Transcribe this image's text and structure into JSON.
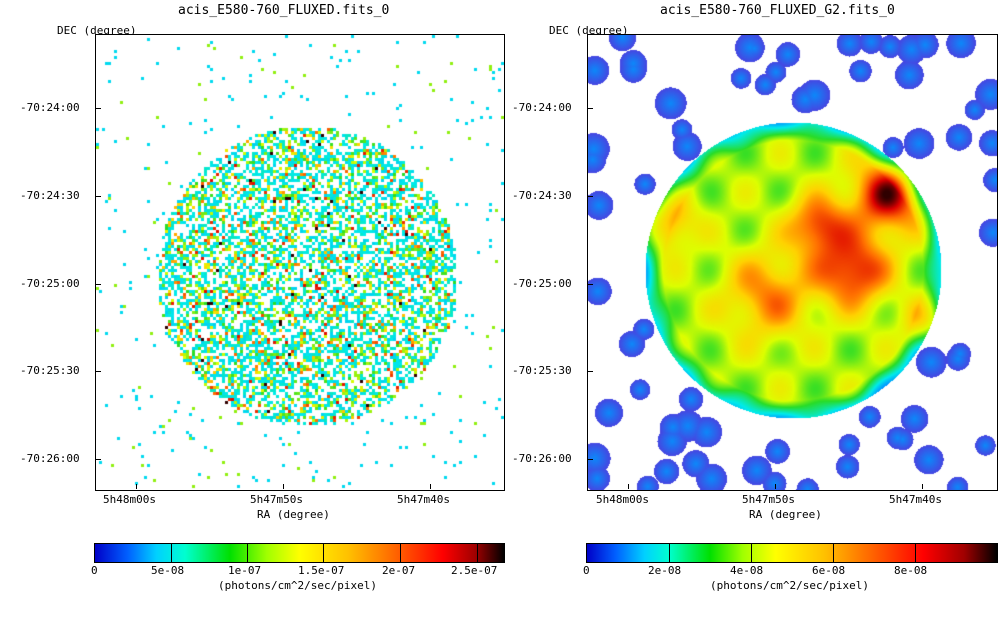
{
  "panels": [
    {
      "title": "acis_E580-760_FLUXED.fits_0",
      "y_axis_label": "DEC (degree)",
      "x_axis_label": "RA (degree)",
      "y_ticks": [
        "-70:24:00",
        "-70:24:30",
        "-70:25:00",
        "-70:25:30",
        "-70:26:00"
      ],
      "x_ticks": [
        "5h48m00s",
        "5h47m50s",
        "5h47m40s"
      ],
      "colorbar_ticks": [
        "0",
        "5e-08",
        "1e-07",
        "1.5e-07",
        "2e-07",
        "2.5e-07"
      ],
      "colorbar_unit": "(photons/cm^2/sec/pixel)",
      "style": "sparse-pixels"
    },
    {
      "title": "acis_E580-760_FLUXED_G2.fits_0",
      "y_axis_label": "DEC (degree)",
      "x_axis_label": "RA (degree)",
      "y_ticks": [
        "-70:24:00",
        "-70:24:30",
        "-70:25:00",
        "-70:25:30",
        "-70:26:00"
      ],
      "x_ticks": [
        "5h48m00s",
        "5h47m50s",
        "5h47m40s"
      ],
      "colorbar_ticks": [
        "0",
        "2e-08",
        "4e-08",
        "6e-08",
        "8e-08"
      ],
      "colorbar_unit": "(photons/cm^2/sec/pixel)",
      "style": "smoothed"
    }
  ],
  "colormap": [
    "#ffffff",
    "#0000c8",
    "#0090ff",
    "#00e8e8",
    "#00d800",
    "#d8ff00",
    "#ffd000",
    "#ff6000",
    "#d80000",
    "#000000"
  ]
}
